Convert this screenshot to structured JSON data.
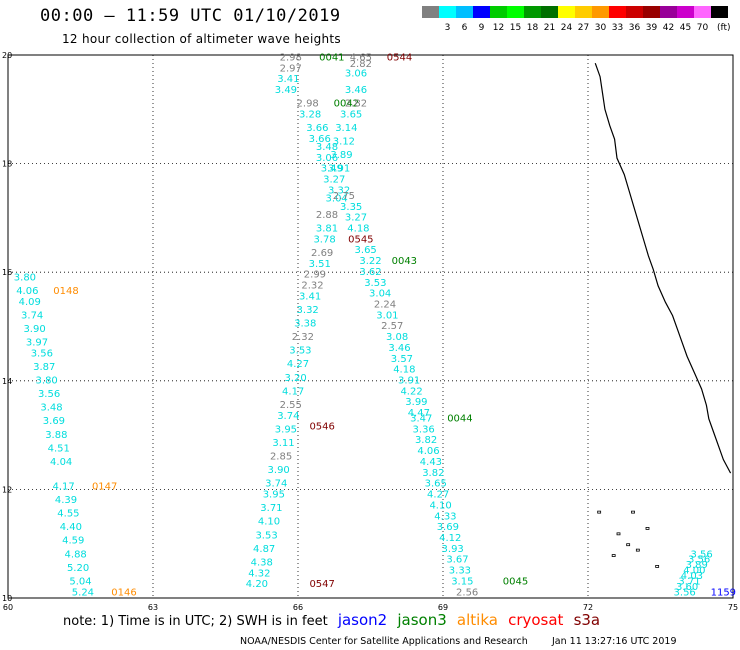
{
  "header": {
    "title": "00:00 – 11:59 UTC 01/10/2019",
    "subtitle": "12 hour collection of altimeter wave heights"
  },
  "colorbar": {
    "unit": "(ft)",
    "swatches": [
      {
        "label": "",
        "color": "#808080"
      },
      {
        "label": "3",
        "color": "#00ffff"
      },
      {
        "label": "6",
        "color": "#00bfff"
      },
      {
        "label": "9",
        "color": "#0000ff"
      },
      {
        "label": "12",
        "color": "#00cc00"
      },
      {
        "label": "15",
        "color": "#00ff00"
      },
      {
        "label": "18",
        "color": "#009900"
      },
      {
        "label": "21",
        "color": "#007000"
      },
      {
        "label": "24",
        "color": "#ffff00"
      },
      {
        "label": "27",
        "color": "#ffcc00"
      },
      {
        "label": "30",
        "color": "#ff9900"
      },
      {
        "label": "33",
        "color": "#ff0000"
      },
      {
        "label": "36",
        "color": "#cc0000"
      },
      {
        "label": "39",
        "color": "#990000"
      },
      {
        "label": "42",
        "color": "#990099"
      },
      {
        "label": "45",
        "color": "#cc00cc"
      },
      {
        "label": "70",
        "color": "#ff66ff"
      },
      {
        "label": "",
        "color": "#000000"
      }
    ]
  },
  "axes": {
    "lon_labels": [
      "60",
      "63",
      "66",
      "69",
      "72",
      "75"
    ],
    "lat_labels": [
      "10",
      "12",
      "14",
      "16",
      "18",
      "20"
    ]
  },
  "colors": {
    "cyan": "#00dddd",
    "gray": "#808080",
    "green": "#008000",
    "darkred": "#800000",
    "orange": "#ff8c00",
    "blue": "#0000ff"
  },
  "map_labels": [
    {
      "t": "2.98",
      "c": "gray",
      "lon": 65.85,
      "lat": 19.9
    },
    {
      "t": "0041",
      "c": "green",
      "lon": 66.7,
      "lat": 19.9
    },
    {
      "t": "4.65",
      "c": "gray",
      "lon": 67.3,
      "lat": 19.9
    },
    {
      "t": "2.82",
      "c": "gray",
      "lon": 67.3,
      "lat": 19.78
    },
    {
      "t": "0544",
      "c": "darkred",
      "lon": 68.1,
      "lat": 19.9
    },
    {
      "t": "2.97",
      "c": "gray",
      "lon": 65.85,
      "lat": 19.7
    },
    {
      "t": "3.06",
      "c": "cyan",
      "lon": 67.2,
      "lat": 19.6
    },
    {
      "t": "3.41",
      "c": "cyan",
      "lon": 65.8,
      "lat": 19.5
    },
    {
      "t": "3.46",
      "c": "cyan",
      "lon": 67.2,
      "lat": 19.3
    },
    {
      "t": "3.49",
      "c": "cyan",
      "lon": 65.75,
      "lat": 19.3
    },
    {
      "t": "2.98",
      "c": "gray",
      "lon": 66.2,
      "lat": 19.05
    },
    {
      "t": "0042",
      "c": "green",
      "lon": 67.0,
      "lat": 19.05
    },
    {
      "t": "2.82",
      "c": "gray",
      "lon": 67.2,
      "lat": 19.05
    },
    {
      "t": "3.28",
      "c": "cyan",
      "lon": 66.25,
      "lat": 18.85
    },
    {
      "t": "3.65",
      "c": "cyan",
      "lon": 67.1,
      "lat": 18.85
    },
    {
      "t": "3.66",
      "c": "cyan",
      "lon": 66.4,
      "lat": 18.6
    },
    {
      "t": "3.14",
      "c": "cyan",
      "lon": 67.0,
      "lat": 18.6
    },
    {
      "t": "3.66",
      "c": "cyan",
      "lon": 66.45,
      "lat": 18.4
    },
    {
      "t": "3.12",
      "c": "cyan",
      "lon": 66.95,
      "lat": 18.35
    },
    {
      "t": "3.48",
      "c": "cyan",
      "lon": 66.6,
      "lat": 18.25
    },
    {
      "t": "3.89",
      "c": "cyan",
      "lon": 66.9,
      "lat": 18.1
    },
    {
      "t": "3.06",
      "c": "cyan",
      "lon": 66.6,
      "lat": 18.05
    },
    {
      "t": "3.49",
      "c": "cyan",
      "lon": 66.7,
      "lat": 17.85
    },
    {
      "t": "3.91",
      "c": "cyan",
      "lon": 66.85,
      "lat": 17.85
    },
    {
      "t": "3.27",
      "c": "cyan",
      "lon": 66.75,
      "lat": 17.65
    },
    {
      "t": "3.32",
      "c": "cyan",
      "lon": 66.85,
      "lat": 17.45
    },
    {
      "t": "3.04",
      "c": "cyan",
      "lon": 66.8,
      "lat": 17.3
    },
    {
      "t": "2.75",
      "c": "gray",
      "lon": 66.95,
      "lat": 17.35
    },
    {
      "t": "3.35",
      "c": "cyan",
      "lon": 67.1,
      "lat": 17.15
    },
    {
      "t": "2.88",
      "c": "gray",
      "lon": 66.6,
      "lat": 17.0
    },
    {
      "t": "3.27",
      "c": "cyan",
      "lon": 67.2,
      "lat": 16.95
    },
    {
      "t": "3.81",
      "c": "cyan",
      "lon": 66.6,
      "lat": 16.75
    },
    {
      "t": "4.18",
      "c": "cyan",
      "lon": 67.25,
      "lat": 16.75
    },
    {
      "t": "3.78",
      "c": "cyan",
      "lon": 66.55,
      "lat": 16.55
    },
    {
      "t": "0545",
      "c": "darkred",
      "lon": 67.3,
      "lat": 16.55
    },
    {
      "t": "2.69",
      "c": "gray",
      "lon": 66.5,
      "lat": 16.3
    },
    {
      "t": "3.65",
      "c": "cyan",
      "lon": 67.4,
      "lat": 16.35
    },
    {
      "t": "3.51",
      "c": "cyan",
      "lon": 66.45,
      "lat": 16.1
    },
    {
      "t": "3.22",
      "c": "cyan",
      "lon": 67.5,
      "lat": 16.15
    },
    {
      "t": "0043",
      "c": "green",
      "lon": 68.2,
      "lat": 16.15
    },
    {
      "t": "3.62",
      "c": "cyan",
      "lon": 67.5,
      "lat": 15.95
    },
    {
      "t": "2.99",
      "c": "gray",
      "lon": 66.35,
      "lat": 15.9
    },
    {
      "t": "3.53",
      "c": "cyan",
      "lon": 67.6,
      "lat": 15.75
    },
    {
      "t": "2.32",
      "c": "gray",
      "lon": 66.3,
      "lat": 15.7
    },
    {
      "t": "3.04",
      "c": "cyan",
      "lon": 67.7,
      "lat": 15.55
    },
    {
      "t": "3.41",
      "c": "cyan",
      "lon": 66.25,
      "lat": 15.5
    },
    {
      "t": "2.24",
      "c": "gray",
      "lon": 67.8,
      "lat": 15.35
    },
    {
      "t": "3.32",
      "c": "cyan",
      "lon": 66.2,
      "lat": 15.25
    },
    {
      "t": "3.01",
      "c": "cyan",
      "lon": 67.85,
      "lat": 15.15
    },
    {
      "t": "3.38",
      "c": "cyan",
      "lon": 66.15,
      "lat": 15.0
    },
    {
      "t": "2.57",
      "c": "gray",
      "lon": 67.95,
      "lat": 14.95
    },
    {
      "t": "2.32",
      "c": "gray",
      "lon": 66.1,
      "lat": 14.75
    },
    {
      "t": "3.08",
      "c": "cyan",
      "lon": 68.05,
      "lat": 14.75
    },
    {
      "t": "3.53",
      "c": "cyan",
      "lon": 66.05,
      "lat": 14.5
    },
    {
      "t": "3.46",
      "c": "cyan",
      "lon": 68.1,
      "lat": 14.55
    },
    {
      "t": "3.57",
      "c": "cyan",
      "lon": 68.15,
      "lat": 14.35
    },
    {
      "t": "4.27",
      "c": "cyan",
      "lon": 66.0,
      "lat": 14.25
    },
    {
      "t": "4.18",
      "c": "cyan",
      "lon": 68.2,
      "lat": 14.15
    },
    {
      "t": "3.20",
      "c": "cyan",
      "lon": 65.95,
      "lat": 14.0
    },
    {
      "t": "3.91",
      "c": "cyan",
      "lon": 68.3,
      "lat": 13.95
    },
    {
      "t": "4.17",
      "c": "cyan",
      "lon": 65.9,
      "lat": 13.75
    },
    {
      "t": "4.22",
      "c": "cyan",
      "lon": 68.35,
      "lat": 13.75
    },
    {
      "t": "2.55",
      "c": "gray",
      "lon": 65.85,
      "lat": 13.5
    },
    {
      "t": "3.99",
      "c": "cyan",
      "lon": 68.45,
      "lat": 13.55
    },
    {
      "t": "4.47",
      "c": "cyan",
      "lon": 68.5,
      "lat": 13.35
    },
    {
      "t": "3.74",
      "c": "cyan",
      "lon": 65.8,
      "lat": 13.3
    },
    {
      "t": "0044",
      "c": "green",
      "lon": 69.35,
      "lat": 13.25
    },
    {
      "t": "3.47",
      "c": "cyan",
      "lon": 68.55,
      "lat": 13.25
    },
    {
      "t": "0546",
      "c": "darkred",
      "lon": 66.5,
      "lat": 13.1
    },
    {
      "t": "3.95",
      "c": "cyan",
      "lon": 65.75,
      "lat": 13.05
    },
    {
      "t": "3.36",
      "c": "cyan",
      "lon": 68.6,
      "lat": 13.05
    },
    {
      "t": "3.82",
      "c": "cyan",
      "lon": 68.65,
      "lat": 12.85
    },
    {
      "t": "3.11",
      "c": "cyan",
      "lon": 65.7,
      "lat": 12.8
    },
    {
      "t": "4.06",
      "c": "cyan",
      "lon": 68.7,
      "lat": 12.65
    },
    {
      "t": "2.85",
      "c": "gray",
      "lon": 65.65,
      "lat": 12.55
    },
    {
      "t": "4.43",
      "c": "cyan",
      "lon": 68.75,
      "lat": 12.45
    },
    {
      "t": "3.90",
      "c": "cyan",
      "lon": 65.6,
      "lat": 12.3
    },
    {
      "t": "3.82",
      "c": "cyan",
      "lon": 68.8,
      "lat": 12.25
    },
    {
      "t": "3.74",
      "c": "cyan",
      "lon": 65.55,
      "lat": 12.05
    },
    {
      "t": "3.65",
      "c": "cyan",
      "lon": 68.85,
      "lat": 12.05
    },
    {
      "t": "3.95",
      "c": "cyan",
      "lon": 65.5,
      "lat": 11.85
    },
    {
      "t": "4.27",
      "c": "cyan",
      "lon": 68.9,
      "lat": 11.85
    },
    {
      "t": "4.10",
      "c": "cyan",
      "lon": 68.95,
      "lat": 11.65
    },
    {
      "t": "3.71",
      "c": "cyan",
      "lon": 65.45,
      "lat": 11.6
    },
    {
      "t": "4.33",
      "c": "cyan",
      "lon": 69.05,
      "lat": 11.45
    },
    {
      "t": "4.10",
      "c": "cyan",
      "lon": 65.4,
      "lat": 11.35
    },
    {
      "t": "3.69",
      "c": "cyan",
      "lon": 69.1,
      "lat": 11.25
    },
    {
      "t": "3.53",
      "c": "cyan",
      "lon": 65.35,
      "lat": 11.1
    },
    {
      "t": "4.12",
      "c": "cyan",
      "lon": 69.15,
      "lat": 11.05
    },
    {
      "t": "4.87",
      "c": "cyan",
      "lon": 65.3,
      "lat": 10.85
    },
    {
      "t": "3.93",
      "c": "cyan",
      "lon": 69.2,
      "lat": 10.85
    },
    {
      "t": "4.38",
      "c": "cyan",
      "lon": 65.25,
      "lat": 10.6
    },
    {
      "t": "3.67",
      "c": "cyan",
      "lon": 69.3,
      "lat": 10.65
    },
    {
      "t": "3.33",
      "c": "cyan",
      "lon": 69.35,
      "lat": 10.45
    },
    {
      "t": "4.32",
      "c": "cyan",
      "lon": 65.2,
      "lat": 10.4
    },
    {
      "t": "0547",
      "c": "darkred",
      "lon": 66.5,
      "lat": 10.2
    },
    {
      "t": "3.15",
      "c": "cyan",
      "lon": 69.4,
      "lat": 10.25
    },
    {
      "t": "0045",
      "c": "green",
      "lon": 70.5,
      "lat": 10.25
    },
    {
      "t": "4.20",
      "c": "cyan",
      "lon": 65.15,
      "lat": 10.2
    },
    {
      "t": "2.56",
      "c": "gray",
      "lon": 69.5,
      "lat": 10.05
    },
    {
      "t": "3.80",
      "c": "cyan",
      "lon": 60.35,
      "lat": 15.85
    },
    {
      "t": "4.06",
      "c": "cyan",
      "lon": 60.4,
      "lat": 15.6
    },
    {
      "t": "0148",
      "c": "orange",
      "lon": 61.2,
      "lat": 15.6
    },
    {
      "t": "4.09",
      "c": "cyan",
      "lon": 60.45,
      "lat": 15.4
    },
    {
      "t": "3.74",
      "c": "cyan",
      "lon": 60.5,
      "lat": 15.15
    },
    {
      "t": "3.90",
      "c": "cyan",
      "lon": 60.55,
      "lat": 14.9
    },
    {
      "t": "3.97",
      "c": "cyan",
      "lon": 60.6,
      "lat": 14.65
    },
    {
      "t": "3.56",
      "c": "cyan",
      "lon": 60.7,
      "lat": 14.45
    },
    {
      "t": "3.87",
      "c": "cyan",
      "lon": 60.75,
      "lat": 14.2
    },
    {
      "t": "3.80",
      "c": "cyan",
      "lon": 60.8,
      "lat": 13.95
    },
    {
      "t": "3.56",
      "c": "cyan",
      "lon": 60.85,
      "lat": 13.7
    },
    {
      "t": "3.48",
      "c": "cyan",
      "lon": 60.9,
      "lat": 13.45
    },
    {
      "t": "3.69",
      "c": "cyan",
      "lon": 60.95,
      "lat": 13.2
    },
    {
      "t": "3.88",
      "c": "cyan",
      "lon": 61.0,
      "lat": 12.95
    },
    {
      "t": "4.51",
      "c": "cyan",
      "lon": 61.05,
      "lat": 12.7
    },
    {
      "t": "4.04",
      "c": "cyan",
      "lon": 61.1,
      "lat": 12.45
    },
    {
      "t": "4.17",
      "c": "cyan",
      "lon": 61.15,
      "lat": 12.0
    },
    {
      "t": "0147",
      "c": "orange",
      "lon": 62.0,
      "lat": 12.0
    },
    {
      "t": "4.39",
      "c": "cyan",
      "lon": 61.2,
      "lat": 11.75
    },
    {
      "t": "4.55",
      "c": "cyan",
      "lon": 61.25,
      "lat": 11.5
    },
    {
      "t": "4.40",
      "c": "cyan",
      "lon": 61.3,
      "lat": 11.25
    },
    {
      "t": "4.59",
      "c": "cyan",
      "lon": 61.35,
      "lat": 11.0
    },
    {
      "t": "4.88",
      "c": "cyan",
      "lon": 61.4,
      "lat": 10.75
    },
    {
      "t": "5.20",
      "c": "cyan",
      "lon": 61.45,
      "lat": 10.5
    },
    {
      "t": "5.04",
      "c": "cyan",
      "lon": 61.5,
      "lat": 10.25
    },
    {
      "t": "5.24",
      "c": "cyan",
      "lon": 61.55,
      "lat": 10.05
    },
    {
      "t": "0146",
      "c": "orange",
      "lon": 62.4,
      "lat": 10.05
    },
    {
      "t": "3.56",
      "c": "cyan",
      "lon": 74.35,
      "lat": 10.75
    },
    {
      "t": "3.56",
      "c": "cyan",
      "lon": 74.3,
      "lat": 10.65
    },
    {
      "t": "3.89",
      "c": "cyan",
      "lon": 74.25,
      "lat": 10.55
    },
    {
      "t": "4.00",
      "c": "cyan",
      "lon": 74.2,
      "lat": 10.45
    },
    {
      "t": "4.03",
      "c": "cyan",
      "lon": 74.15,
      "lat": 10.35
    },
    {
      "t": "3.71",
      "c": "cyan",
      "lon": 74.1,
      "lat": 10.25
    },
    {
      "t": "3.60",
      "c": "cyan",
      "lon": 74.05,
      "lat": 10.15
    },
    {
      "t": "3.56",
      "c": "cyan",
      "lon": 74.0,
      "lat": 10.05
    },
    {
      "t": "1159",
      "c": "blue",
      "lon": 74.8,
      "lat": 10.05
    }
  ],
  "footer": {
    "note": "note:  1) Time is in UTC;  2) SWH is in feet",
    "legend": [
      {
        "label": "jason2",
        "color": "#0000ff"
      },
      {
        "label": "jason3",
        "color": "#008000"
      },
      {
        "label": "altika",
        "color": "#ff8c00"
      },
      {
        "label": "cryosat",
        "color": "#ff0000"
      },
      {
        "label": "s3a",
        "color": "#800000"
      }
    ],
    "credit": "NOAA/NESDIS Center for Satellite Applications and Research",
    "timestamp": "Jan 11 13:27:16 UTC 2019"
  }
}
